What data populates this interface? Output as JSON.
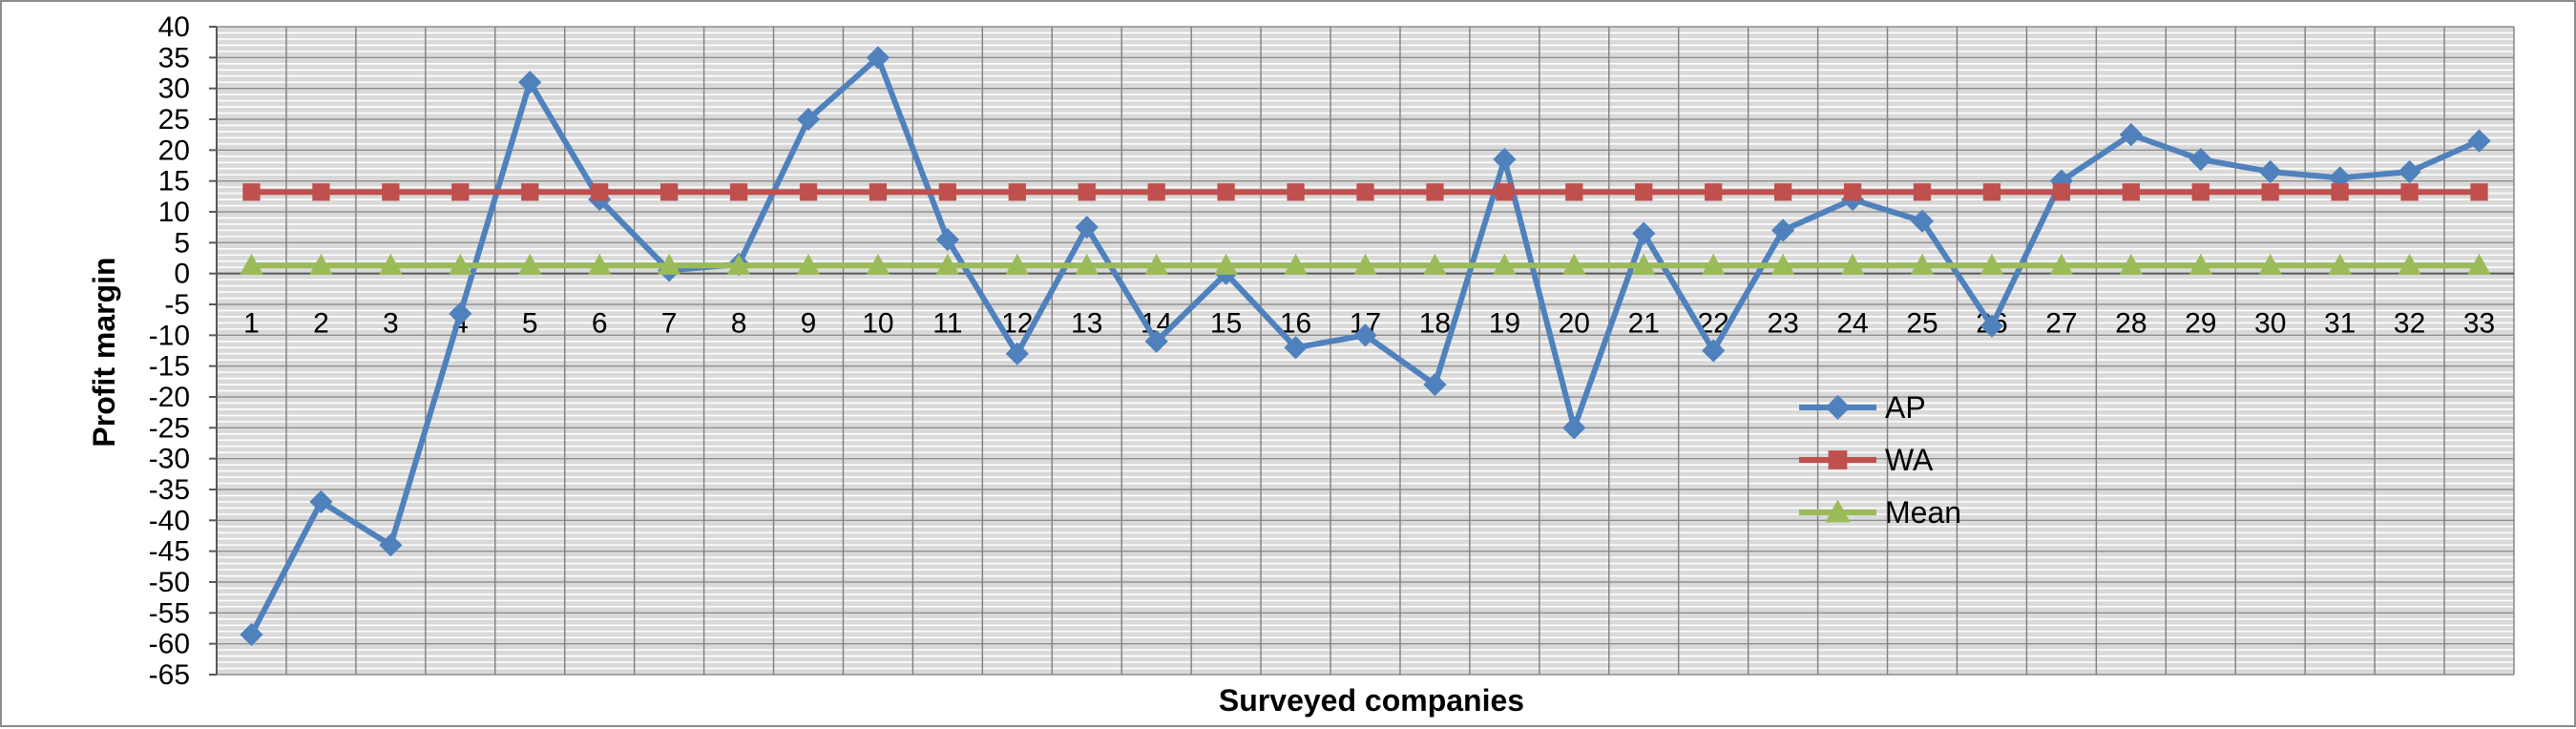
{
  "chart_data": {
    "type": "line",
    "title": "",
    "xlabel": "Surveyed companies",
    "ylabel": "Profit margin",
    "categories": [
      "1",
      "2",
      "3",
      "4",
      "5",
      "6",
      "7",
      "8",
      "9",
      "10",
      "11",
      "12",
      "13",
      "14",
      "15",
      "16",
      "17",
      "18",
      "19",
      "20",
      "21",
      "22",
      "23",
      "24",
      "25",
      "26",
      "27",
      "28",
      "29",
      "30",
      "31",
      "32",
      "33"
    ],
    "ylim": [
      -65,
      40
    ],
    "ytick_step": 5,
    "grid": true,
    "legend_position": "right-center",
    "series": [
      {
        "name": "AP",
        "color": "#4f81bd",
        "marker": "diamond",
        "values": [
          -58.5,
          -37,
          -44,
          -6.5,
          31,
          12,
          0.5,
          1.5,
          25,
          35,
          5.5,
          -13,
          7.5,
          -11,
          0,
          -12,
          -10,
          -18,
          18.5,
          -25,
          6.5,
          -12.5,
          7,
          12,
          8.5,
          -8.5,
          15,
          22.5,
          18.5,
          16.5,
          15.5,
          16.5,
          21.5
        ]
      },
      {
        "name": "WA",
        "color": "#c0504d",
        "marker": "square",
        "values": [
          13.2,
          13.2,
          13.2,
          13.2,
          13.2,
          13.2,
          13.2,
          13.2,
          13.2,
          13.2,
          13.2,
          13.2,
          13.2,
          13.2,
          13.2,
          13.2,
          13.2,
          13.2,
          13.2,
          13.2,
          13.2,
          13.2,
          13.2,
          13.2,
          13.2,
          13.2,
          13.2,
          13.2,
          13.2,
          13.2,
          13.2,
          13.2,
          13.2
        ]
      },
      {
        "name": "Mean",
        "color": "#9bbb59",
        "marker": "triangle",
        "values": [
          1.3,
          1.3,
          1.3,
          1.3,
          1.3,
          1.3,
          1.3,
          1.3,
          1.3,
          1.3,
          1.3,
          1.3,
          1.3,
          1.3,
          1.3,
          1.3,
          1.3,
          1.3,
          1.3,
          1.3,
          1.3,
          1.3,
          1.3,
          1.3,
          1.3,
          1.3,
          1.3,
          1.3,
          1.3,
          1.3,
          1.3,
          1.3,
          1.3
        ]
      }
    ]
  }
}
